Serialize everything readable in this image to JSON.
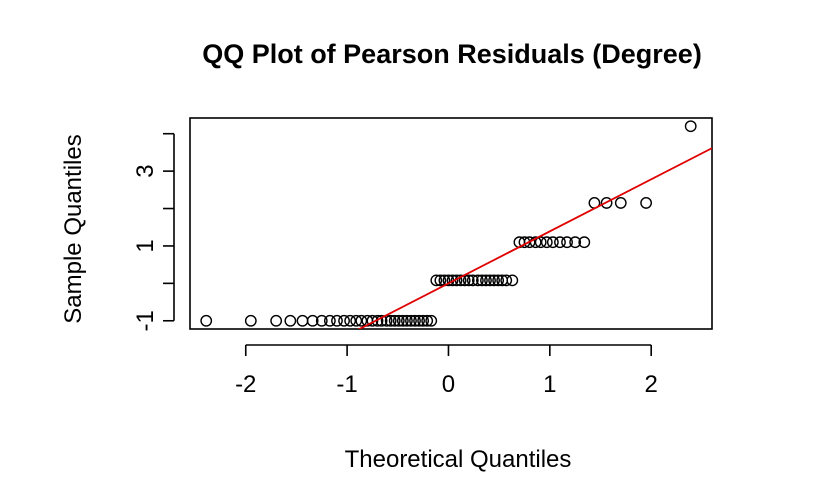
{
  "chart_data": {
    "type": "scatter",
    "title": "QQ Plot of Pearson Residuals (Degree)",
    "xlabel": "Theoretical Quantiles",
    "ylabel": "Sample Quantiles",
    "xlim": [
      -2.55,
      2.6
    ],
    "ylim": [
      -1.22,
      4.42
    ],
    "x_ticks": [
      -2,
      -1,
      0,
      1,
      2
    ],
    "x_tick_labels": [
      "-2",
      "-1",
      "0",
      "1",
      "2"
    ],
    "y_ticks": [
      -1,
      0,
      1,
      2,
      3,
      4
    ],
    "y_tick_labels": [
      "-1",
      "",
      "1",
      "",
      "3",
      ""
    ],
    "grid": false,
    "legend": "none",
    "point_color": "#000000",
    "line_color": "#e00000",
    "reference_line": {
      "intercept": 0.0,
      "slope": 1.39
    },
    "series": [
      {
        "values": [
          {
            "x": -2.39,
            "y": -1.0
          },
          {
            "x": -1.95,
            "y": -1.0
          },
          {
            "x": -1.7,
            "y": -1.0
          },
          {
            "x": -1.56,
            "y": -1.0
          },
          {
            "x": -1.44,
            "y": -1.0
          },
          {
            "x": -1.34,
            "y": -1.0
          },
          {
            "x": -1.25,
            "y": -1.0
          },
          {
            "x": -1.17,
            "y": -1.0
          },
          {
            "x": -1.1,
            "y": -1.0
          },
          {
            "x": -1.03,
            "y": -1.0
          },
          {
            "x": -0.97,
            "y": -1.0
          },
          {
            "x": -0.91,
            "y": -1.0
          },
          {
            "x": -0.86,
            "y": -1.0
          },
          {
            "x": -0.8,
            "y": -1.0
          },
          {
            "x": -0.75,
            "y": -1.0
          },
          {
            "x": -0.7,
            "y": -1.0
          },
          {
            "x": -0.66,
            "y": -1.0
          },
          {
            "x": -0.61,
            "y": -1.0
          },
          {
            "x": -0.57,
            "y": -1.0
          },
          {
            "x": -0.53,
            "y": -1.0
          },
          {
            "x": -0.49,
            "y": -1.0
          },
          {
            "x": -0.45,
            "y": -1.0
          },
          {
            "x": -0.41,
            "y": -1.0
          },
          {
            "x": -0.37,
            "y": -1.0
          },
          {
            "x": -0.33,
            "y": -1.0
          },
          {
            "x": -0.29,
            "y": -1.0
          },
          {
            "x": -0.25,
            "y": -1.0
          },
          {
            "x": -0.21,
            "y": -1.0
          },
          {
            "x": -0.17,
            "y": -1.0
          },
          {
            "x": -0.12,
            "y": 0.08
          },
          {
            "x": -0.08,
            "y": 0.08
          },
          {
            "x": -0.04,
            "y": 0.08
          },
          {
            "x": 0.0,
            "y": 0.08
          },
          {
            "x": 0.04,
            "y": 0.08
          },
          {
            "x": 0.08,
            "y": 0.08
          },
          {
            "x": 0.12,
            "y": 0.08
          },
          {
            "x": 0.16,
            "y": 0.08
          },
          {
            "x": 0.2,
            "y": 0.08
          },
          {
            "x": 0.24,
            "y": 0.08
          },
          {
            "x": 0.29,
            "y": 0.08
          },
          {
            "x": 0.33,
            "y": 0.08
          },
          {
            "x": 0.37,
            "y": 0.08
          },
          {
            "x": 0.41,
            "y": 0.08
          },
          {
            "x": 0.45,
            "y": 0.08
          },
          {
            "x": 0.49,
            "y": 0.08
          },
          {
            "x": 0.53,
            "y": 0.08
          },
          {
            "x": 0.57,
            "y": 0.08
          },
          {
            "x": 0.63,
            "y": 0.08
          },
          {
            "x": 0.7,
            "y": 1.1
          },
          {
            "x": 0.75,
            "y": 1.1
          },
          {
            "x": 0.8,
            "y": 1.1
          },
          {
            "x": 0.86,
            "y": 1.1
          },
          {
            "x": 0.91,
            "y": 1.1
          },
          {
            "x": 0.97,
            "y": 1.1
          },
          {
            "x": 1.03,
            "y": 1.1
          },
          {
            "x": 1.1,
            "y": 1.1
          },
          {
            "x": 1.17,
            "y": 1.1
          },
          {
            "x": 1.25,
            "y": 1.1
          },
          {
            "x": 1.34,
            "y": 1.1
          },
          {
            "x": 1.44,
            "y": 2.15
          },
          {
            "x": 1.56,
            "y": 2.15
          },
          {
            "x": 1.7,
            "y": 2.15
          },
          {
            "x": 1.95,
            "y": 2.15
          },
          {
            "x": 2.39,
            "y": 4.2
          }
        ]
      }
    ]
  }
}
